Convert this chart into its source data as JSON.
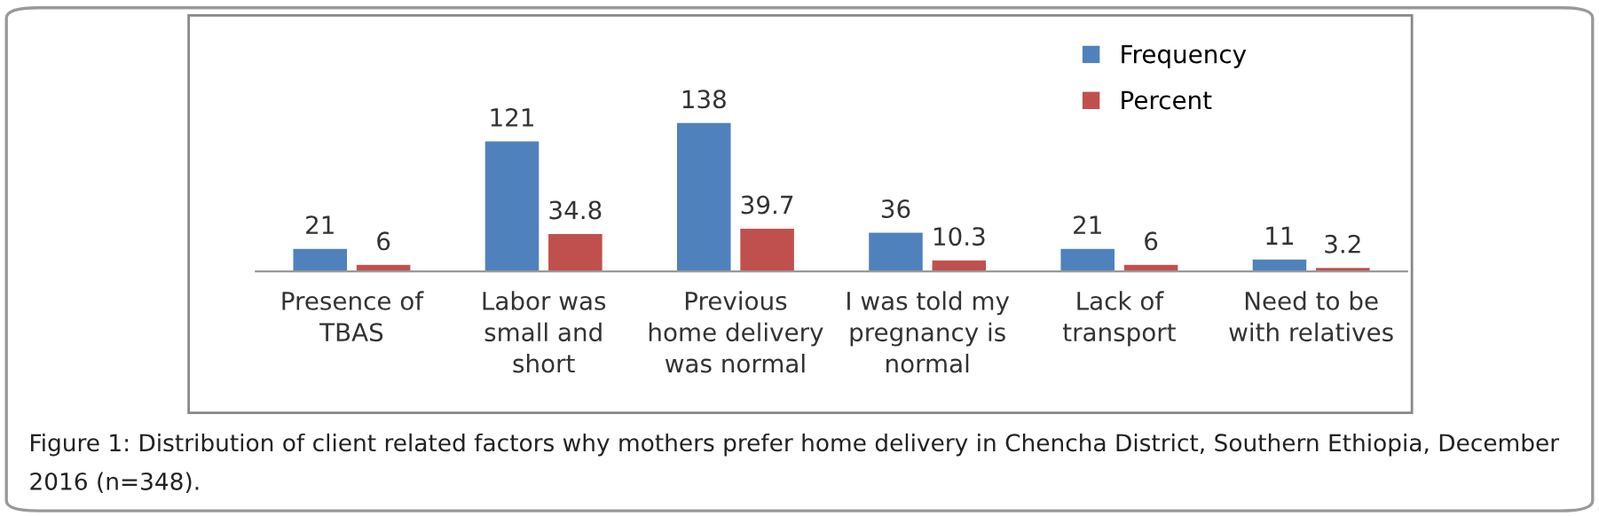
{
  "chart_data": {
    "type": "bar",
    "categories": [
      "Presence of\nTBAS",
      "Labor was\nsmall and\nshort",
      "Previous\nhome delivery\nwas normal",
      "I was told my\npregnancy is\nnormal",
      "Lack of\ntransport",
      "Need to be\nwith relatives"
    ],
    "series": [
      {
        "name": "Frequency",
        "color": "#4f81bd",
        "values": [
          21,
          121,
          138,
          36,
          21,
          11
        ]
      },
      {
        "name": "Percent",
        "color": "#c0504d",
        "values": [
          6,
          34.8,
          39.7,
          10.3,
          6,
          3.2
        ]
      }
    ],
    "data_labels": true,
    "legend": "top right",
    "grid": false,
    "annotations": [
      "Figure 1: Distribution of client related factors why mothers prefer home delivery in Chencha District, Southern Ethiopia, December 2016 (n=348)."
    ]
  }
}
